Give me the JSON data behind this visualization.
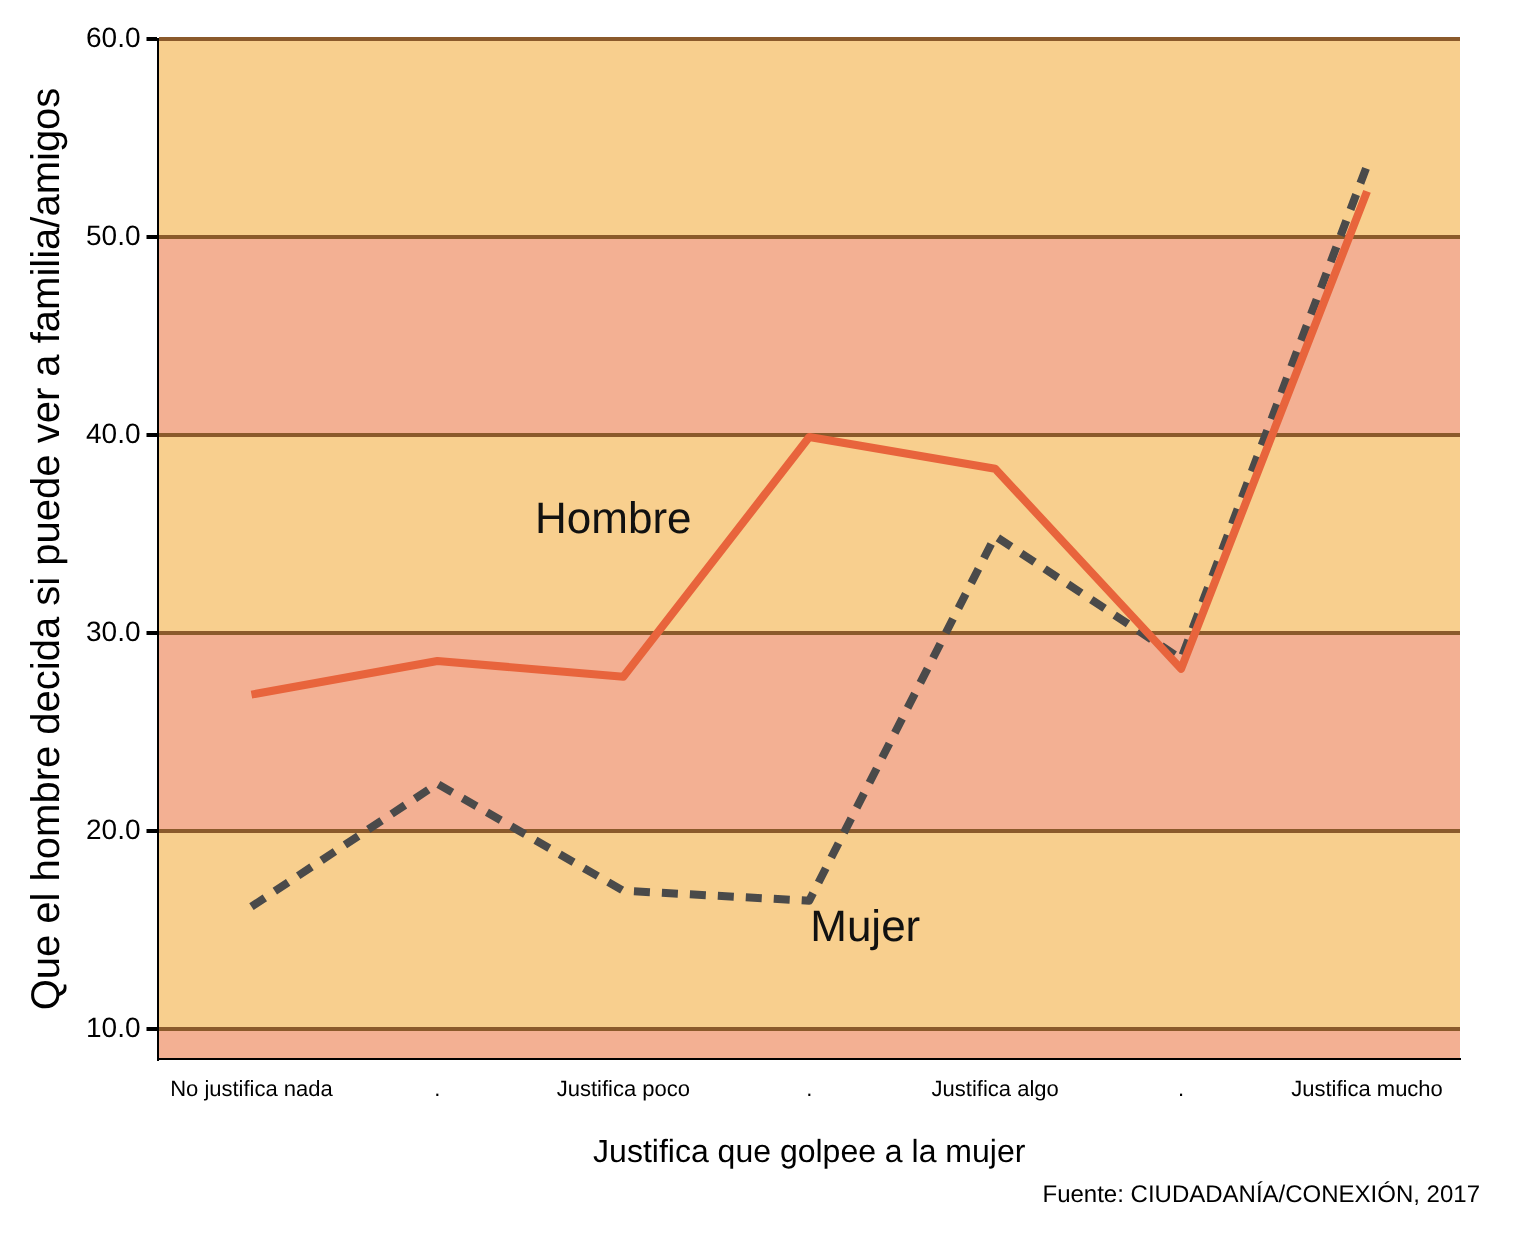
{
  "chart_data": {
    "type": "line",
    "xlabel": "Justifica que golpee a la mujer",
    "ylabel": "Que el hombre decida si puede ver a familia/amigos",
    "categories": [
      "No justifica nada",
      ".",
      "Justifica poco",
      ".",
      "Justifica algo",
      ".",
      "Justifica mucho"
    ],
    "series": [
      {
        "name": "Hombre",
        "color": "#e8643c",
        "line_style": "solid",
        "values": [
          26.9,
          28.6,
          27.8,
          39.9,
          38.3,
          28.2,
          52.3
        ]
      },
      {
        "name": "Mujer",
        "color": "#4a4a4a",
        "line_style": "dashed",
        "values": [
          16.2,
          22.4,
          17.0,
          16.5,
          34.9,
          28.7,
          53.6
        ]
      }
    ],
    "ylim": [
      8.5,
      60
    ],
    "yticks": [
      {
        "value": 10,
        "label": "10.0"
      },
      {
        "value": 20,
        "label": "20.0"
      },
      {
        "value": 30,
        "label": "30.0"
      },
      {
        "value": 40,
        "label": "40.0"
      },
      {
        "value": 50,
        "label": "50.0"
      },
      {
        "value": 60,
        "label": "60.0"
      }
    ],
    "bands": [
      {
        "axis": "y",
        "from": 8.5,
        "to": 10,
        "color": "#f3b093"
      },
      {
        "axis": "y",
        "from": 10,
        "to": 20,
        "color": "#f8cf8e"
      },
      {
        "axis": "y",
        "from": 20,
        "to": 30,
        "color": "#f3b093"
      },
      {
        "axis": "y",
        "from": 30,
        "to": 40,
        "color": "#f8cf8e"
      },
      {
        "axis": "y",
        "from": 40,
        "to": 50,
        "color": "#f3b093"
      },
      {
        "axis": "y",
        "from": 50,
        "to": 60,
        "color": "#f8cf8e"
      }
    ],
    "grid": "y",
    "legend": false,
    "marker": "none",
    "annotations": [
      "Fuente: CIUDADANÍA/CONEXIÓN, 2017"
    ]
  }
}
